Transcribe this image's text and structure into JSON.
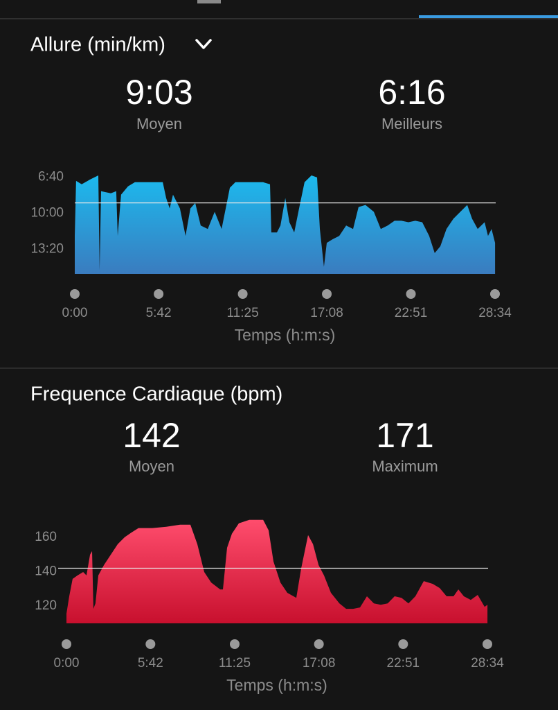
{
  "chart_data": [
    {
      "type": "area",
      "title": "Allure (min/km)",
      "stats": [
        {
          "value": 9.05,
          "value_label": "9:03",
          "label": "Moyen"
        },
        {
          "value": 6.267,
          "value_label": "6:16",
          "label": "Meilleurs"
        }
      ],
      "x": [
        0,
        0.09,
        0.47,
        1.04,
        1.6,
        1.69,
        1.79,
        2.45,
        2.82,
        2.92,
        3.15,
        3.62,
        4.09,
        4.8,
        5.98,
        6.21,
        6.45,
        6.68,
        7.15,
        7.53,
        7.86,
        8.19,
        8.56,
        9.04,
        9.51,
        9.98,
        10.54,
        10.92,
        12.8,
        13.27,
        13.36,
        13.74,
        13.98,
        14.31,
        14.59,
        14.92,
        15.25,
        15.62,
        16.09,
        16.47,
        16.66,
        16.94,
        17.13,
        17.51,
        17.98,
        18.45,
        18.92,
        19.29,
        19.76,
        20.33,
        20.8,
        21.27,
        21.74,
        22.21,
        22.68,
        23.15,
        23.62,
        24.09,
        24.47,
        24.85,
        25.27,
        25.74,
        26.21,
        26.68,
        27.01,
        27.39,
        27.86,
        28.09,
        28.33,
        28.57
      ],
      "values": [
        12.1,
        7.02,
        7.33,
        6.89,
        6.51,
        15.27,
        7.97,
        8.16,
        7.97,
        12.1,
        8.29,
        7.52,
        7.14,
        7.14,
        7.14,
        8.6,
        9.56,
        8.29,
        9.56,
        12.1,
        9.56,
        9.05,
        11.14,
        11.46,
        9.87,
        11.46,
        7.65,
        7.14,
        7.14,
        7.33,
        11.78,
        11.78,
        11.14,
        8.6,
        10.83,
        11.78,
        9.56,
        7.14,
        6.51,
        6.7,
        11.46,
        14.95,
        12.73,
        12.41,
        12.1,
        11.14,
        11.46,
        9.43,
        9.24,
        9.87,
        11.46,
        11.14,
        10.7,
        10.7,
        10.83,
        10.7,
        10.83,
        12.1,
        13.68,
        13.05,
        11.46,
        10.51,
        9.87,
        9.24,
        10.51,
        11.46,
        10.83,
        12.1,
        11.46,
        12.73
      ],
      "colors": [
        "#1cbaee",
        "#3a7cbf"
      ],
      "xlim": [
        0,
        28.567
      ],
      "xticks": [
        {
          "value": 0,
          "label": "0:00"
        },
        {
          "value": 5.7,
          "label": "5:42"
        },
        {
          "value": 11.417,
          "label": "11:25"
        },
        {
          "value": 17.133,
          "label": "17:08"
        },
        {
          "value": 22.85,
          "label": "22:51"
        },
        {
          "value": 28.567,
          "label": "28:34"
        }
      ],
      "ylim": [
        15.6,
        6
      ],
      "yticks": [
        {
          "value": 6.667,
          "label": "6:40"
        },
        {
          "value": 10,
          "label": "10:00"
        },
        {
          "value": 13.333,
          "label": "13:20"
        }
      ],
      "xlabel": "Temps (h:m:s)"
    },
    {
      "type": "area",
      "title": "Frequence Cardiaque (bpm)",
      "stats": [
        {
          "value": 142,
          "label": "Moyen"
        },
        {
          "value": 171,
          "label": "Maximum"
        }
      ],
      "x": [
        0,
        0.19,
        0.42,
        0.75,
        1.13,
        1.36,
        1.6,
        1.74,
        1.83,
        1.97,
        2.16,
        2.54,
        3.01,
        3.48,
        3.95,
        4.42,
        4.89,
        5.83,
        6.77,
        7.71,
        8.41,
        8.88,
        9.35,
        9.82,
        10.43,
        10.62,
        10.9,
        11.23,
        11.7,
        12.41,
        13.35,
        13.72,
        14.05,
        14.52,
        14.99,
        15.6,
        15.93,
        16.4,
        16.73,
        17.11,
        17.48,
        17.95,
        18.52,
        18.98,
        19.45,
        19.92,
        20.39,
        20.86,
        21.33,
        21.8,
        22.27,
        22.74,
        23.21,
        23.68,
        24.25,
        24.86,
        25.33,
        25.8,
        26.27,
        26.6,
        26.97,
        27.44,
        27.91,
        28.38,
        28.57
      ],
      "values": [
        115.6,
        125.7,
        135.8,
        137.8,
        139.8,
        137.8,
        149.9,
        151.9,
        118.4,
        121.6,
        137.8,
        143.8,
        149.9,
        156,
        160,
        162.8,
        165.3,
        165.3,
        166.1,
        167.3,
        167.3,
        156,
        139.8,
        133.7,
        129.7,
        129.7,
        153.9,
        162,
        168.1,
        170.1,
        170.1,
        164,
        145.9,
        133.7,
        127.7,
        124.8,
        141.8,
        161.2,
        156,
        143.8,
        137.8,
        127.7,
        121.6,
        118.4,
        118.4,
        119.2,
        125.7,
        121.6,
        120.8,
        121.6,
        125.7,
        124.8,
        121.6,
        125.7,
        134.5,
        132.9,
        130.5,
        125.7,
        125.7,
        129.7,
        125.7,
        123.6,
        126.5,
        119.6,
        120.8
      ],
      "colors": [
        "#ff4d6d",
        "#c8102e"
      ],
      "xlim": [
        0,
        28.567
      ],
      "xticks": [
        {
          "value": 0,
          "label": "0:00"
        },
        {
          "value": 5.7,
          "label": "5:42"
        },
        {
          "value": 11.417,
          "label": "11:25"
        },
        {
          "value": 17.133,
          "label": "17:08"
        },
        {
          "value": 22.85,
          "label": "22:51"
        },
        {
          "value": 28.567,
          "label": "28:34"
        }
      ],
      "ylim": [
        110,
        172
      ],
      "yticks": [
        120,
        140,
        160
      ],
      "xlabel": "Temps (h:m:s)"
    }
  ]
}
